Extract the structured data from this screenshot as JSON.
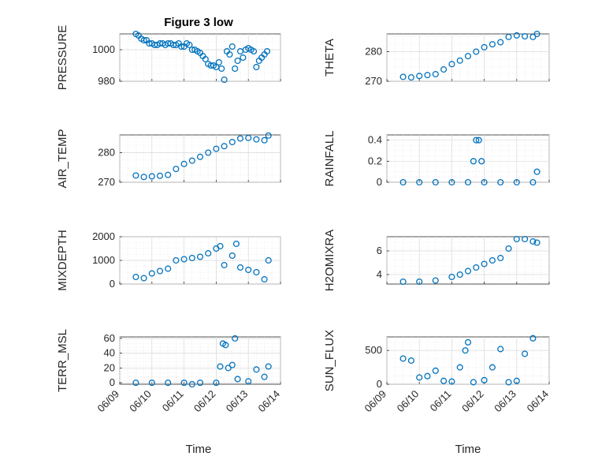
{
  "figure": {
    "title": "Figure 3 low",
    "xlabel": "Time"
  },
  "chart_data": [
    {
      "type": "scatter",
      "id": "pressure",
      "ylabel": "PRESSURE",
      "xlim": [
        "06/09",
        "06/14"
      ],
      "ylim": [
        980,
        1010
      ],
      "yticks": [
        980,
        1000
      ],
      "grid": true,
      "marker": "circle",
      "color": "#0072BD",
      "points": [
        {
          "x": "2013-06-09 12:00",
          "y": 1010
        },
        {
          "x": "2013-06-09 14:00",
          "y": 1009
        },
        {
          "x": "2013-06-09 16:00",
          "y": 1007
        },
        {
          "x": "2013-06-09 18:00",
          "y": 1006
        },
        {
          "x": "2013-06-09 20:00",
          "y": 1006
        },
        {
          "x": "2013-06-09 22:00",
          "y": 1004
        },
        {
          "x": "2013-06-10 00:00",
          "y": 1004
        },
        {
          "x": "2013-06-10 02:00",
          "y": 1003
        },
        {
          "x": "2013-06-10 04:00",
          "y": 1003
        },
        {
          "x": "2013-06-10 06:00",
          "y": 1004
        },
        {
          "x": "2013-06-10 08:00",
          "y": 1004
        },
        {
          "x": "2013-06-10 10:00",
          "y": 1003
        },
        {
          "x": "2013-06-10 12:00",
          "y": 1004
        },
        {
          "x": "2013-06-10 14:00",
          "y": 1004
        },
        {
          "x": "2013-06-10 16:00",
          "y": 1003
        },
        {
          "x": "2013-06-10 18:00",
          "y": 1003
        },
        {
          "x": "2013-06-10 20:00",
          "y": 1004
        },
        {
          "x": "2013-06-10 22:00",
          "y": 1002
        },
        {
          "x": "2013-06-11 00:00",
          "y": 1002
        },
        {
          "x": "2013-06-11 02:00",
          "y": 1004
        },
        {
          "x": "2013-06-11 04:00",
          "y": 1003
        },
        {
          "x": "2013-06-11 06:00",
          "y": 1000
        },
        {
          "x": "2013-06-11 08:00",
          "y": 1000
        },
        {
          "x": "2013-06-11 10:00",
          "y": 999
        },
        {
          "x": "2013-06-11 12:00",
          "y": 998
        },
        {
          "x": "2013-06-11 14:00",
          "y": 996
        },
        {
          "x": "2013-06-11 16:00",
          "y": 994
        },
        {
          "x": "2013-06-11 18:00",
          "y": 991
        },
        {
          "x": "2013-06-11 20:00",
          "y": 990
        },
        {
          "x": "2013-06-11 22:00",
          "y": 990
        },
        {
          "x": "2013-06-12 00:00",
          "y": 989
        },
        {
          "x": "2013-06-12 02:00",
          "y": 992
        },
        {
          "x": "2013-06-12 04:00",
          "y": 988
        },
        {
          "x": "2013-06-12 06:00",
          "y": 981
        },
        {
          "x": "2013-06-12 08:00",
          "y": 999
        },
        {
          "x": "2013-06-12 10:00",
          "y": 997
        },
        {
          "x": "2013-06-12 12:00",
          "y": 1002
        },
        {
          "x": "2013-06-12 14:00",
          "y": 988
        },
        {
          "x": "2013-06-12 16:00",
          "y": 993
        },
        {
          "x": "2013-06-12 18:00",
          "y": 999
        },
        {
          "x": "2013-06-12 20:00",
          "y": 995
        },
        {
          "x": "2013-06-12 22:00",
          "y": 1000
        },
        {
          "x": "2013-06-13 00:00",
          "y": 1001
        },
        {
          "x": "2013-06-13 02:00",
          "y": 1000
        },
        {
          "x": "2013-06-13 04:00",
          "y": 999
        },
        {
          "x": "2013-06-13 06:00",
          "y": 989
        },
        {
          "x": "2013-06-13 08:00",
          "y": 993
        },
        {
          "x": "2013-06-13 10:00",
          "y": 995
        },
        {
          "x": "2013-06-13 12:00",
          "y": 997
        },
        {
          "x": "2013-06-13 14:00",
          "y": 999
        }
      ]
    },
    {
      "type": "scatter",
      "id": "theta",
      "ylabel": "THETA",
      "xlim": [
        "06/09",
        "06/14"
      ],
      "ylim": [
        270,
        286
      ],
      "yticks": [
        270,
        280
      ],
      "grid": true,
      "marker": "circle",
      "color": "#0072BD",
      "points": [
        {
          "x": "2013-06-09 12:00",
          "y": 271.5
        },
        {
          "x": "2013-06-09 18:00",
          "y": 271.3
        },
        {
          "x": "2013-06-10 00:00",
          "y": 271.8
        },
        {
          "x": "2013-06-10 06:00",
          "y": 272.1
        },
        {
          "x": "2013-06-10 12:00",
          "y": 272.4
        },
        {
          "x": "2013-06-10 18:00",
          "y": 274.0
        },
        {
          "x": "2013-06-11 00:00",
          "y": 275.8
        },
        {
          "x": "2013-06-11 06:00",
          "y": 277.0
        },
        {
          "x": "2013-06-11 12:00",
          "y": 278.5
        },
        {
          "x": "2013-06-11 18:00",
          "y": 280.0
        },
        {
          "x": "2013-06-12 00:00",
          "y": 281.5
        },
        {
          "x": "2013-06-12 06:00",
          "y": 282.5
        },
        {
          "x": "2013-06-12 12:00",
          "y": 283.2
        },
        {
          "x": "2013-06-12 18:00",
          "y": 285.0
        },
        {
          "x": "2013-06-13 00:00",
          "y": 285.5
        },
        {
          "x": "2013-06-13 06:00",
          "y": 285.2
        },
        {
          "x": "2013-06-13 12:00",
          "y": 285.0
        },
        {
          "x": "2013-06-13 15:00",
          "y": 286.0
        }
      ]
    },
    {
      "type": "scatter",
      "id": "air_temp",
      "ylabel": "AIR_TEMP",
      "xlim": [
        "06/09",
        "06/14"
      ],
      "ylim": [
        270,
        286
      ],
      "yticks": [
        270,
        280
      ],
      "grid": true,
      "marker": "circle",
      "color": "#0072BD",
      "points": [
        {
          "x": "2013-06-09 12:00",
          "y": 272.3
        },
        {
          "x": "2013-06-09 18:00",
          "y": 271.8
        },
        {
          "x": "2013-06-10 00:00",
          "y": 272.0
        },
        {
          "x": "2013-06-10 06:00",
          "y": 272.2
        },
        {
          "x": "2013-06-10 12:00",
          "y": 272.5
        },
        {
          "x": "2013-06-10 18:00",
          "y": 274.5
        },
        {
          "x": "2013-06-11 00:00",
          "y": 276.2
        },
        {
          "x": "2013-06-11 06:00",
          "y": 277.3
        },
        {
          "x": "2013-06-11 12:00",
          "y": 278.6
        },
        {
          "x": "2013-06-11 18:00",
          "y": 280.0
        },
        {
          "x": "2013-06-12 00:00",
          "y": 281.3
        },
        {
          "x": "2013-06-12 06:00",
          "y": 282.2
        },
        {
          "x": "2013-06-12 12:00",
          "y": 283.6
        },
        {
          "x": "2013-06-12 18:00",
          "y": 284.8
        },
        {
          "x": "2013-06-13 00:00",
          "y": 285.0
        },
        {
          "x": "2013-06-13 06:00",
          "y": 284.5
        },
        {
          "x": "2013-06-13 12:00",
          "y": 284.2
        },
        {
          "x": "2013-06-13 15:00",
          "y": 285.8
        }
      ]
    },
    {
      "type": "scatter",
      "id": "rainfall",
      "ylabel": "RAINFALL",
      "xlim": [
        "06/09",
        "06/14"
      ],
      "ylim": [
        0,
        0.45
      ],
      "yticks": [
        0,
        0.2,
        0.4
      ],
      "grid": true,
      "marker": "circle",
      "color": "#0072BD",
      "points": [
        {
          "x": "2013-06-09 12:00",
          "y": 0
        },
        {
          "x": "2013-06-10 00:00",
          "y": 0
        },
        {
          "x": "2013-06-10 12:00",
          "y": 0
        },
        {
          "x": "2013-06-11 00:00",
          "y": 0
        },
        {
          "x": "2013-06-11 12:00",
          "y": 0
        },
        {
          "x": "2013-06-11 16:00",
          "y": 0.2
        },
        {
          "x": "2013-06-11 18:00",
          "y": 0.4
        },
        {
          "x": "2013-06-11 20:00",
          "y": 0.4
        },
        {
          "x": "2013-06-11 22:00",
          "y": 0.2
        },
        {
          "x": "2013-06-12 00:00",
          "y": 0
        },
        {
          "x": "2013-06-12 12:00",
          "y": 0
        },
        {
          "x": "2013-06-13 00:00",
          "y": 0
        },
        {
          "x": "2013-06-13 12:00",
          "y": 0
        },
        {
          "x": "2013-06-13 15:00",
          "y": 0.1
        }
      ]
    },
    {
      "type": "scatter",
      "id": "mixdepth",
      "ylabel": "MIXDEPTH",
      "xlim": [
        "06/09",
        "06/14"
      ],
      "ylim": [
        0,
        2000
      ],
      "yticks": [
        0,
        1000,
        2000
      ],
      "grid": true,
      "marker": "circle",
      "color": "#0072BD",
      "points": [
        {
          "x": "2013-06-09 12:00",
          "y": 300
        },
        {
          "x": "2013-06-09 18:00",
          "y": 250
        },
        {
          "x": "2013-06-10 00:00",
          "y": 450
        },
        {
          "x": "2013-06-10 06:00",
          "y": 550
        },
        {
          "x": "2013-06-10 12:00",
          "y": 650
        },
        {
          "x": "2013-06-10 18:00",
          "y": 1000
        },
        {
          "x": "2013-06-11 00:00",
          "y": 1050
        },
        {
          "x": "2013-06-11 06:00",
          "y": 1100
        },
        {
          "x": "2013-06-11 12:00",
          "y": 1150
        },
        {
          "x": "2013-06-11 18:00",
          "y": 1300
        },
        {
          "x": "2013-06-12 00:00",
          "y": 1500
        },
        {
          "x": "2013-06-12 03:00",
          "y": 1600
        },
        {
          "x": "2013-06-12 06:00",
          "y": 800
        },
        {
          "x": "2013-06-12 12:00",
          "y": 1200
        },
        {
          "x": "2013-06-12 15:00",
          "y": 1700
        },
        {
          "x": "2013-06-12 18:00",
          "y": 700
        },
        {
          "x": "2013-06-13 00:00",
          "y": 600
        },
        {
          "x": "2013-06-13 06:00",
          "y": 500
        },
        {
          "x": "2013-06-13 12:00",
          "y": 200
        },
        {
          "x": "2013-06-13 15:00",
          "y": 1000
        }
      ]
    },
    {
      "type": "scatter",
      "id": "h2omixra",
      "ylabel": "H2OMIXRA",
      "xlim": [
        "06/09",
        "06/14"
      ],
      "ylim": [
        3.2,
        7.2
      ],
      "yticks": [
        4,
        6
      ],
      "grid": true,
      "marker": "circle",
      "color": "#0072BD",
      "points": [
        {
          "x": "2013-06-09 12:00",
          "y": 3.4
        },
        {
          "x": "2013-06-10 00:00",
          "y": 3.4
        },
        {
          "x": "2013-06-10 12:00",
          "y": 3.5
        },
        {
          "x": "2013-06-11 00:00",
          "y": 3.8
        },
        {
          "x": "2013-06-11 06:00",
          "y": 4.0
        },
        {
          "x": "2013-06-11 12:00",
          "y": 4.3
        },
        {
          "x": "2013-06-11 18:00",
          "y": 4.6
        },
        {
          "x": "2013-06-12 00:00",
          "y": 4.9
        },
        {
          "x": "2013-06-12 06:00",
          "y": 5.2
        },
        {
          "x": "2013-06-12 12:00",
          "y": 5.4
        },
        {
          "x": "2013-06-12 18:00",
          "y": 6.2
        },
        {
          "x": "2013-06-13 00:00",
          "y": 7.0
        },
        {
          "x": "2013-06-13 06:00",
          "y": 7.0
        },
        {
          "x": "2013-06-13 12:00",
          "y": 6.8
        },
        {
          "x": "2013-06-13 15:00",
          "y": 6.7
        }
      ]
    },
    {
      "type": "scatter",
      "id": "terr_msl",
      "ylabel": "TERR_MSL",
      "xlim": [
        "06/09",
        "06/14"
      ],
      "ylim": [
        -2,
        62
      ],
      "yticks": [
        0,
        20,
        40,
        60
      ],
      "grid": true,
      "marker": "circle",
      "color": "#0072BD",
      "points": [
        {
          "x": "2013-06-09 12:00",
          "y": 0
        },
        {
          "x": "2013-06-10 00:00",
          "y": 0
        },
        {
          "x": "2013-06-10 12:00",
          "y": 0
        },
        {
          "x": "2013-06-11 00:00",
          "y": 0
        },
        {
          "x": "2013-06-11 06:00",
          "y": -2
        },
        {
          "x": "2013-06-11 12:00",
          "y": 0
        },
        {
          "x": "2013-06-12 00:00",
          "y": 0
        },
        {
          "x": "2013-06-12 03:00",
          "y": 22
        },
        {
          "x": "2013-06-12 05:00",
          "y": 53
        },
        {
          "x": "2013-06-12 07:00",
          "y": 51
        },
        {
          "x": "2013-06-12 09:00",
          "y": 20
        },
        {
          "x": "2013-06-12 12:00",
          "y": 24
        },
        {
          "x": "2013-06-12 14:00",
          "y": 60
        },
        {
          "x": "2013-06-12 16:00",
          "y": 5
        },
        {
          "x": "2013-06-13 00:00",
          "y": 2
        },
        {
          "x": "2013-06-13 06:00",
          "y": 18
        },
        {
          "x": "2013-06-13 12:00",
          "y": 8
        },
        {
          "x": "2013-06-13 15:00",
          "y": 22
        }
      ]
    },
    {
      "type": "scatter",
      "id": "sun_flux",
      "ylabel": "SUN_FLUX",
      "xlim": [
        "06/09",
        "06/14"
      ],
      "ylim": [
        0,
        700
      ],
      "yticks": [
        0,
        500
      ],
      "grid": true,
      "marker": "circle",
      "color": "#0072BD",
      "points": [
        {
          "x": "2013-06-09 12:00",
          "y": 380
        },
        {
          "x": "2013-06-09 18:00",
          "y": 350
        },
        {
          "x": "2013-06-10 00:00",
          "y": 100
        },
        {
          "x": "2013-06-10 06:00",
          "y": 120
        },
        {
          "x": "2013-06-10 12:00",
          "y": 200
        },
        {
          "x": "2013-06-10 18:00",
          "y": 50
        },
        {
          "x": "2013-06-11 00:00",
          "y": 40
        },
        {
          "x": "2013-06-11 06:00",
          "y": 250
        },
        {
          "x": "2013-06-11 10:00",
          "y": 500
        },
        {
          "x": "2013-06-11 12:00",
          "y": 620
        },
        {
          "x": "2013-06-11 16:00",
          "y": 30
        },
        {
          "x": "2013-06-12 00:00",
          "y": 60
        },
        {
          "x": "2013-06-12 06:00",
          "y": 250
        },
        {
          "x": "2013-06-12 12:00",
          "y": 520
        },
        {
          "x": "2013-06-12 18:00",
          "y": 30
        },
        {
          "x": "2013-06-13 00:00",
          "y": 50
        },
        {
          "x": "2013-06-13 06:00",
          "y": 450
        },
        {
          "x": "2013-06-13 12:00",
          "y": 680
        }
      ]
    }
  ],
  "xticks": [
    "06/09",
    "06/10",
    "06/11",
    "06/12",
    "06/13",
    "06/14"
  ]
}
